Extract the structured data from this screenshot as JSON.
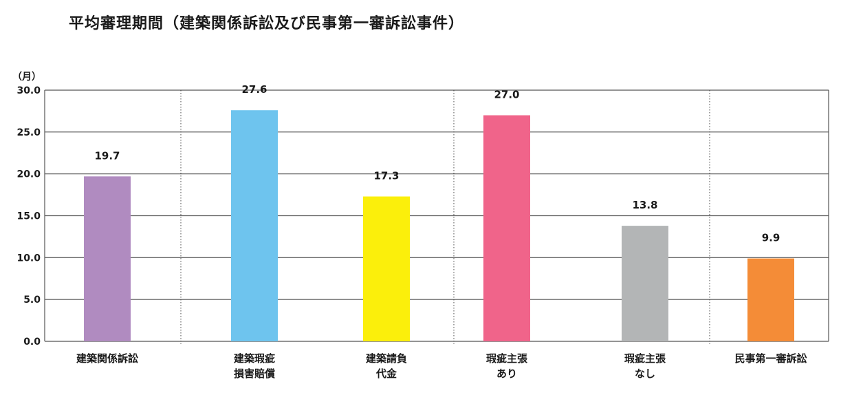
{
  "chart_data": {
    "type": "bar",
    "title": "平均審理期間（建築関係訴訟及び民事第一審訴訟事件）",
    "ylabel": "（月）",
    "xlabel": "",
    "ylim": [
      0,
      30
    ],
    "yticks": [
      "0.0",
      "5.0",
      "10.0",
      "15.0",
      "20.0",
      "25.0",
      "30.0"
    ],
    "grid": true,
    "categories": [
      [
        "建築関係訴訟"
      ],
      [
        "建築瑕疵",
        "損害賠償"
      ],
      [
        "建築請負",
        "代金"
      ],
      [
        "瑕疵主張",
        "あり"
      ],
      [
        "瑕疵主張",
        "なし"
      ],
      [
        "民事第一審訴訟"
      ]
    ],
    "values": [
      19.7,
      27.6,
      17.3,
      27.0,
      13.8,
      9.9
    ],
    "value_labels": [
      "19.7",
      "27.6",
      "17.3",
      "27.0",
      "13.8",
      "9.9"
    ],
    "colors": [
      "#b08bc0",
      "#6ec4ee",
      "#fbef0b",
      "#f0648a",
      "#b3b5b6",
      "#f48c37"
    ]
  }
}
